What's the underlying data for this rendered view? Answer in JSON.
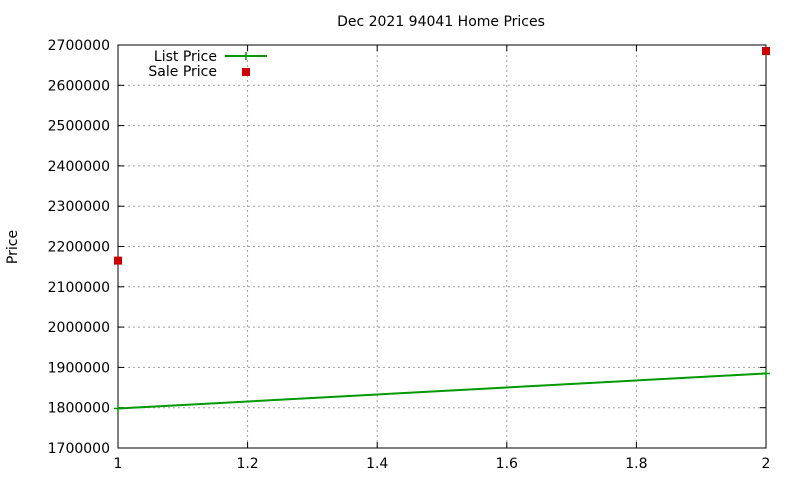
{
  "chart_data": {
    "type": "scatter",
    "title": "Dec 2021 94041 Home Prices",
    "xlabel": "",
    "ylabel": "Price",
    "xlim": [
      1,
      2
    ],
    "ylim": [
      1700000,
      2700000
    ],
    "xticks": [
      "1",
      "1.2",
      "1.4",
      "1.6",
      "1.8",
      "2"
    ],
    "yticks": [
      "1700000",
      "1800000",
      "1900000",
      "2000000",
      "2100000",
      "2200000",
      "2300000",
      "2400000",
      "2500000",
      "2600000",
      "2700000"
    ],
    "grid": true,
    "legend_position": "top-left",
    "series": [
      {
        "name": "List Price",
        "style": "linespoints",
        "color": "#009900",
        "x": [
          1,
          2
        ],
        "y": [
          1798000,
          1885000
        ]
      },
      {
        "name": "Sale Price",
        "style": "points",
        "color": "#cc0000",
        "x": [
          1,
          2
        ],
        "y": [
          2165000,
          2685000
        ]
      }
    ]
  }
}
